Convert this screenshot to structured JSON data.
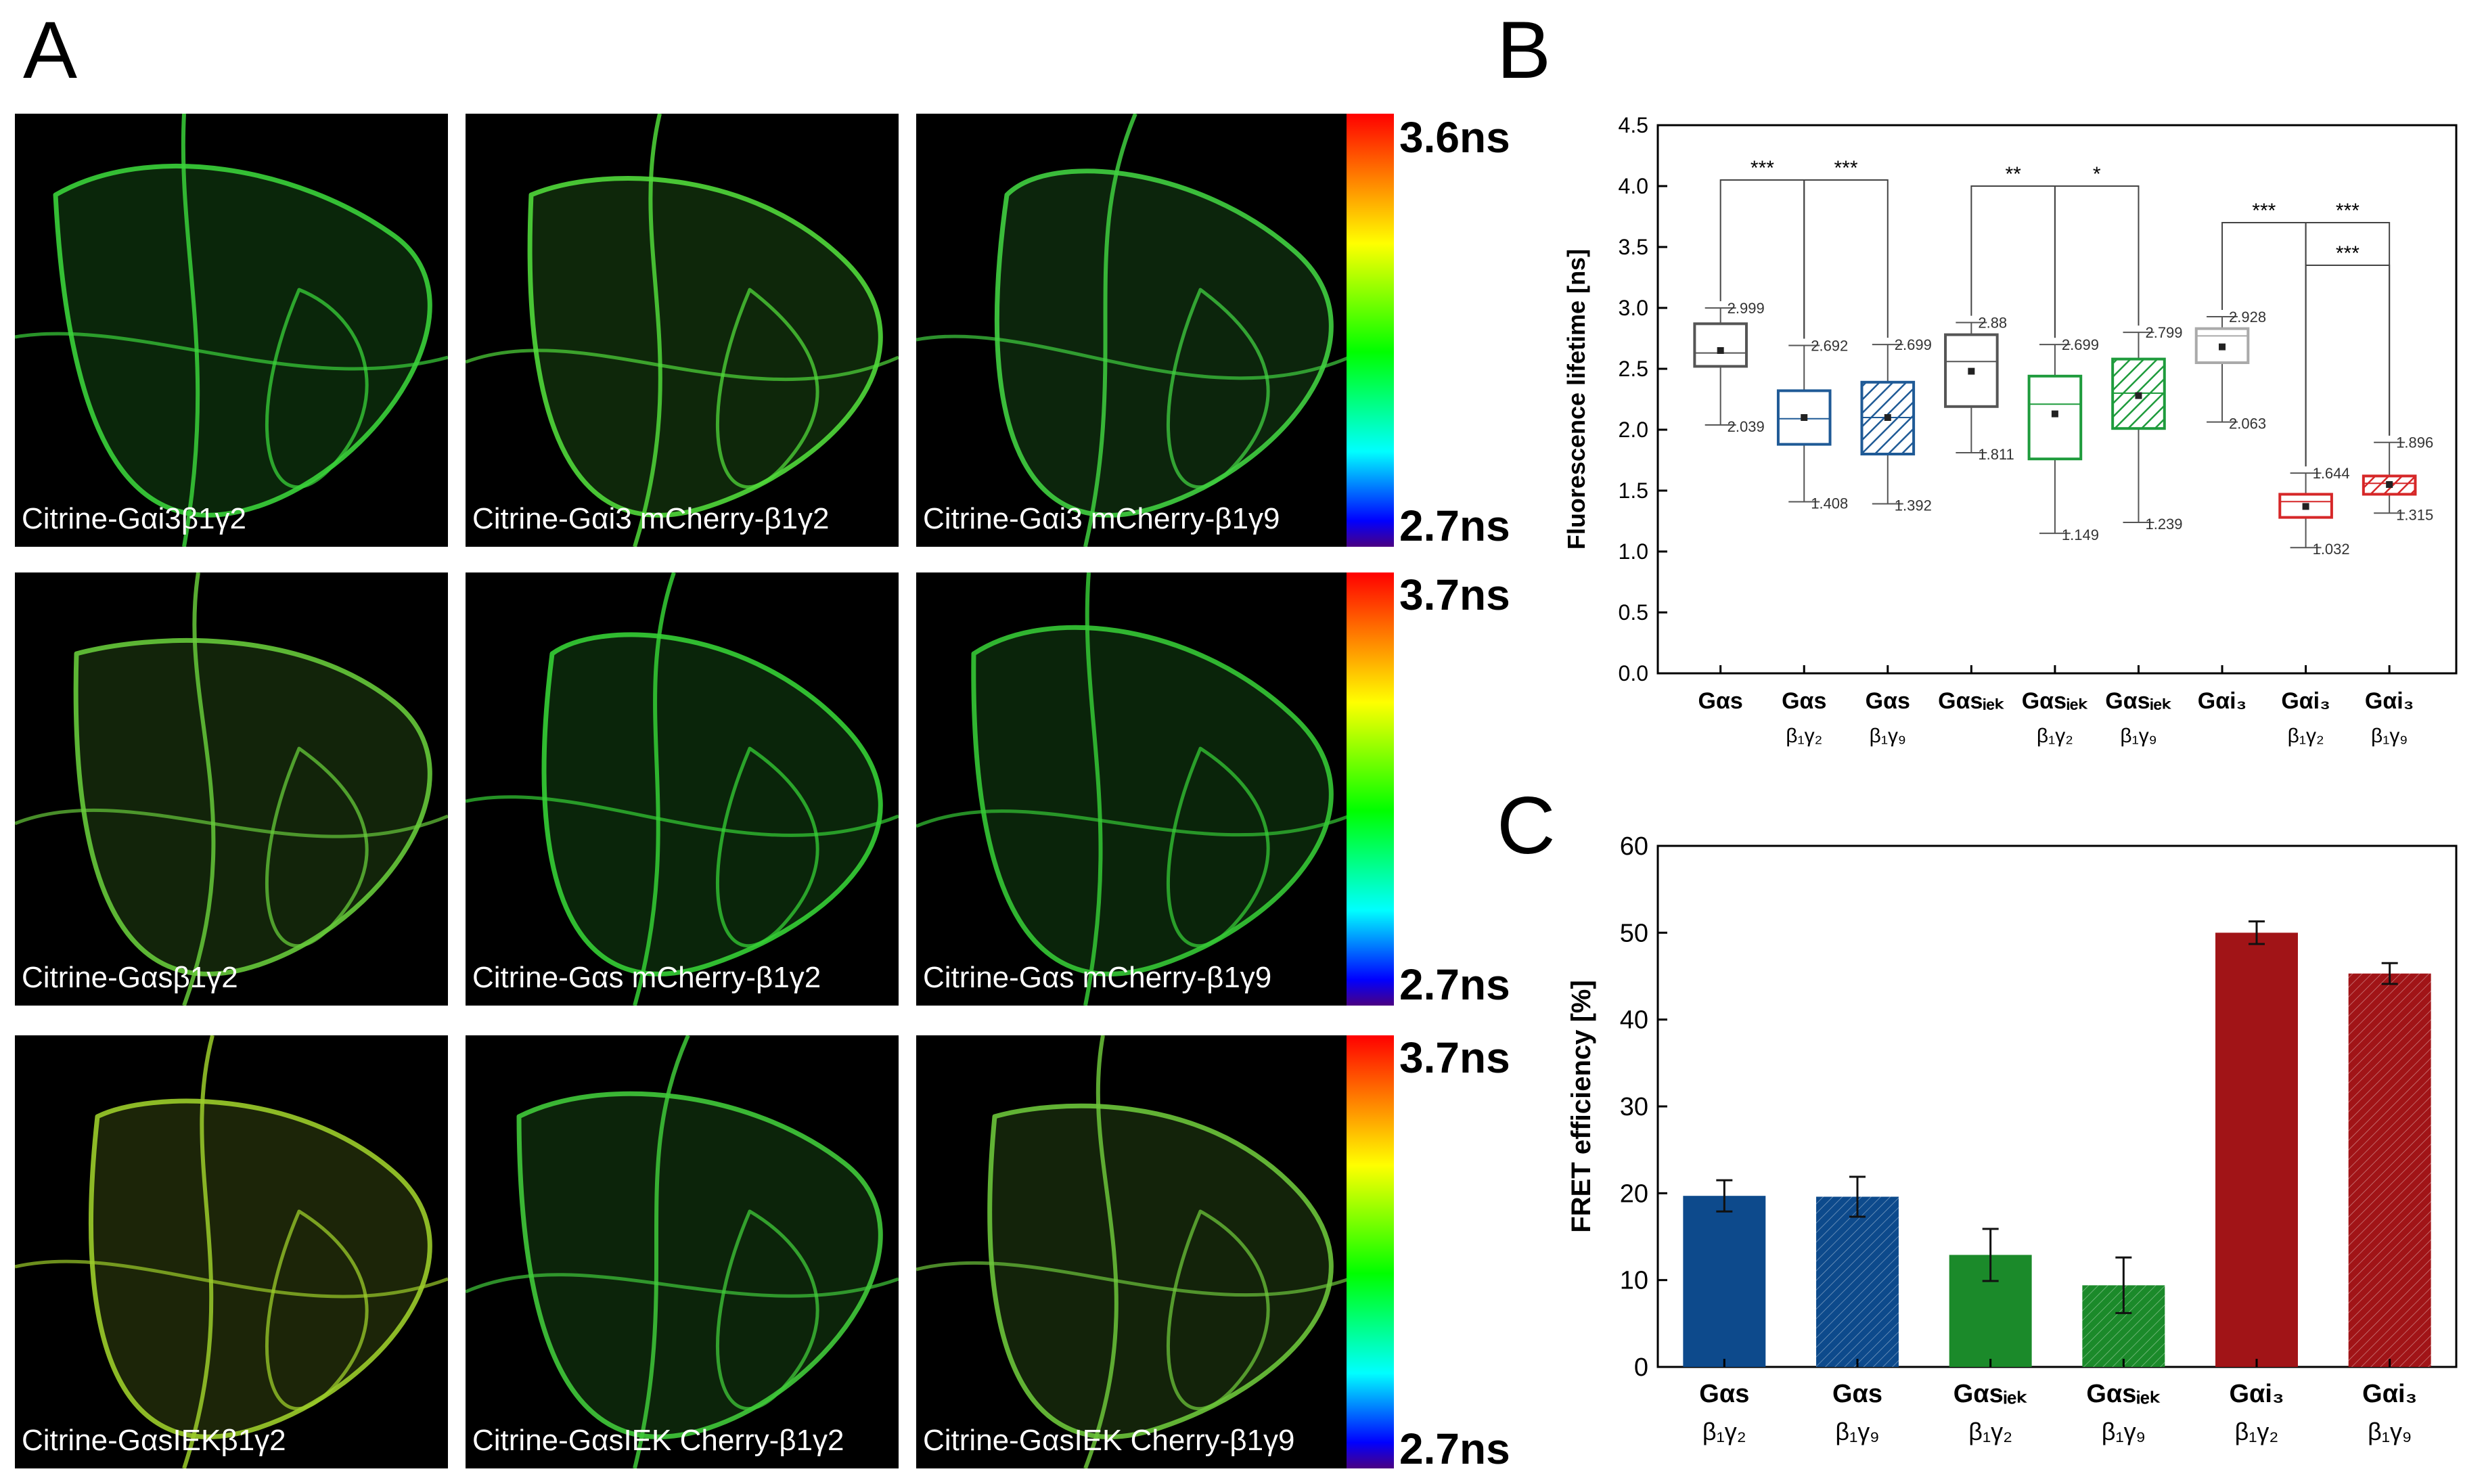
{
  "panels": {
    "a": "A",
    "b": "B",
    "c": "C"
  },
  "micrographs": {
    "row1": [
      "Citrine-Gαi3β1γ2",
      "Citrine-Gαi3 mCherry-β1γ2",
      "Citrine-Gαi3 mCherry-β1γ9"
    ],
    "row2": [
      "Citrine-Gαsβ1γ2",
      "Citrine-Gαs mCherry-β1γ2",
      "Citrine-Gαs mCherry-β1γ9"
    ],
    "row3": [
      "Citrine-GαsIEKβ1γ2",
      "Citrine-GαsIEK Cherry-β1γ2",
      "Citrine-GαsIEK Cherry-β1γ9"
    ]
  },
  "colorbars": [
    {
      "max": "3.6ns",
      "min": "2.7ns"
    },
    {
      "max": "3.7ns",
      "min": "2.7ns"
    },
    {
      "max": "3.7ns",
      "min": "2.7ns"
    }
  ],
  "chart_data": [
    {
      "type": "box",
      "panel": "B",
      "ylabel": "Fluorescence lifetime [ns]",
      "ylim": [
        0.0,
        4.5
      ],
      "yticks": [
        0.0,
        0.5,
        1.0,
        1.5,
        2.0,
        2.5,
        3.0,
        3.5,
        4.0,
        4.5
      ],
      "categories": [
        {
          "main": "Gαs",
          "sub": "",
          "color": "#555555",
          "hatch": false,
          "q1": 2.52,
          "median": 2.63,
          "q3": 2.87,
          "mean": 2.65,
          "whisker_top": 2.999,
          "whisker_bottom": 2.039,
          "top_label": "2.999",
          "bottom_label": "2.039"
        },
        {
          "main": "Gαs",
          "sub": "β₁γ₂",
          "color": "#1f5a96",
          "hatch": false,
          "q1": 1.88,
          "median": 2.09,
          "q3": 2.32,
          "mean": 2.1,
          "whisker_top": 2.692,
          "whisker_bottom": 1.408,
          "top_label": "2.692",
          "bottom_label": "1.408"
        },
        {
          "main": "Gαs",
          "sub": "β₁γ₉",
          "color": "#1f5a96",
          "hatch": true,
          "q1": 1.8,
          "median": 2.1,
          "q3": 2.39,
          "mean": 2.1,
          "whisker_top": 2.699,
          "whisker_bottom": 1.392,
          "top_label": "2.699",
          "bottom_label": "1.392"
        },
        {
          "main": "Gαsᵢₑₖ",
          "sub": "",
          "color": "#555555",
          "hatch": false,
          "q1": 2.19,
          "median": 2.56,
          "q3": 2.78,
          "mean": 2.48,
          "whisker_top": 2.88,
          "whisker_bottom": 1.811,
          "top_label": "2.88",
          "bottom_label": "1.811"
        },
        {
          "main": "Gαsᵢₑₖ",
          "sub": "β₁γ₂",
          "color": "#1e9b3c",
          "hatch": false,
          "q1": 1.76,
          "median": 2.21,
          "q3": 2.44,
          "mean": 2.13,
          "whisker_top": 2.699,
          "whisker_bottom": 1.149,
          "top_label": "2.699",
          "bottom_label": "1.149"
        },
        {
          "main": "Gαsᵢₑₖ",
          "sub": "β₁γ₉",
          "color": "#1e9b3c",
          "hatch": true,
          "q1": 2.01,
          "median": 2.3,
          "q3": 2.58,
          "mean": 2.28,
          "whisker_top": 2.799,
          "whisker_bottom": 1.239,
          "top_label": "2.799",
          "bottom_label": "1.239"
        },
        {
          "main": "Gαi₃",
          "sub": "",
          "color": "#aaaaaa",
          "hatch": false,
          "q1": 2.55,
          "median": 2.77,
          "q3": 2.83,
          "mean": 2.68,
          "whisker_top": 2.928,
          "whisker_bottom": 2.063,
          "top_label": "2.928",
          "bottom_label": "2.063"
        },
        {
          "main": "Gαi₃",
          "sub": "β₁γ₂",
          "color": "#d62728",
          "hatch": false,
          "q1": 1.28,
          "median": 1.41,
          "q3": 1.47,
          "mean": 1.37,
          "whisker_top": 1.644,
          "whisker_bottom": 1.032,
          "top_label": "1.644",
          "bottom_label": "1.032"
        },
        {
          "main": "Gαi₃",
          "sub": "β₁γ₉",
          "color": "#d62728",
          "hatch": true,
          "q1": 1.47,
          "median": 1.56,
          "q3": 1.62,
          "mean": 1.55,
          "whisker_top": 1.896,
          "whisker_bottom": 1.315,
          "top_label": "1.896",
          "bottom_label": "1.315"
        }
      ],
      "significance": [
        {
          "from": 0,
          "to": 1,
          "label": "***",
          "y": 4.05
        },
        {
          "from": 1,
          "to": 2,
          "label": "***",
          "y": 4.05
        },
        {
          "from": 3,
          "to": 4,
          "label": "**",
          "y": 4.0
        },
        {
          "from": 4,
          "to": 5,
          "label": "*",
          "y": 4.0
        },
        {
          "from": 6,
          "to": 7,
          "label": "***",
          "y": 3.7
        },
        {
          "from": 7,
          "to": 8,
          "label": "***",
          "y": 3.7
        },
        {
          "from": 7,
          "to": 8,
          "label": "***",
          "y": 3.35
        }
      ],
      "grid": false
    },
    {
      "type": "bar",
      "panel": "C",
      "ylabel": "FRET efficiency [%]",
      "ylim": [
        0,
        60
      ],
      "yticks": [
        0,
        10,
        20,
        30,
        40,
        50,
        60
      ],
      "categories": [
        {
          "main": "Gαs",
          "sub": "β₁γ₂"
        },
        {
          "main": "Gαs",
          "sub": "β₁γ₉"
        },
        {
          "main": "Gαsᵢₑₖ",
          "sub": "β₁γ₂"
        },
        {
          "main": "Gαsᵢₑₖ",
          "sub": "β₁γ₉"
        },
        {
          "main": "Gαi₃",
          "sub": "β₁γ₂"
        },
        {
          "main": "Gαi₃",
          "sub": "β₁γ₉"
        }
      ],
      "values": [
        19.7,
        19.6,
        12.9,
        9.4,
        50.0,
        45.3
      ],
      "errors": [
        1.8,
        2.3,
        3.0,
        3.2,
        1.3,
        1.2
      ],
      "colors": [
        "#0d4a8c",
        "#0d4a8c",
        "#1b8a2a",
        "#1b8a2a",
        "#a11417",
        "#a11417"
      ],
      "hatched": [
        false,
        true,
        false,
        true,
        false,
        true
      ],
      "grid": false
    }
  ]
}
